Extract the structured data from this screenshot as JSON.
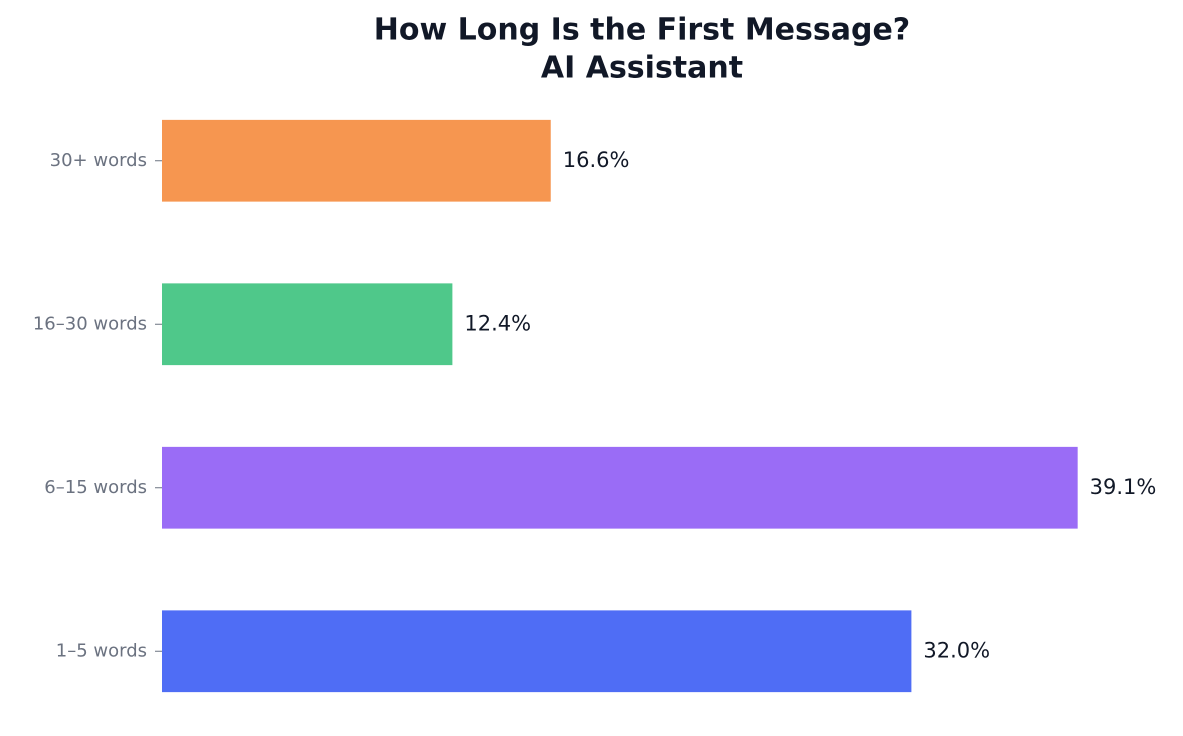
{
  "chart_data": {
    "type": "hbar",
    "title": "How Long Is the First Message?",
    "subtitle": "AI Assistant",
    "categories": [
      "1–5 words",
      "6–15 words",
      "16–30 words",
      "30+ words"
    ],
    "values": [
      32.0,
      39.1,
      12.4,
      16.6
    ],
    "value_labels": [
      "32.0%",
      "39.1%",
      "12.4%",
      "16.6%"
    ],
    "colors": [
      "#4f6df5",
      "#9a6cf6",
      "#4fc88a",
      "#f69650"
    ],
    "xlim": [
      0,
      43
    ]
  }
}
